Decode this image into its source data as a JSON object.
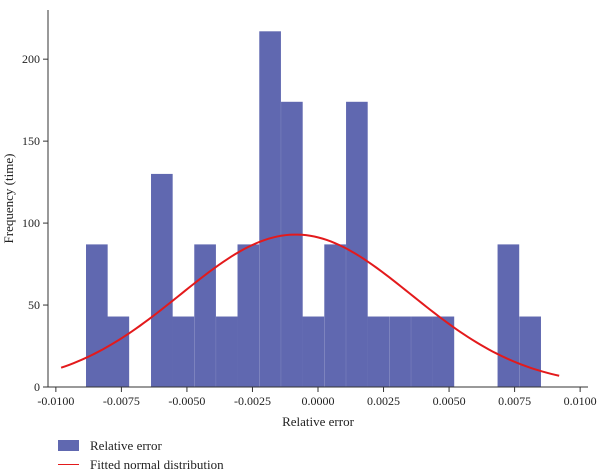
{
  "chart_data": {
    "type": "bar",
    "xlabel": "Relative error",
    "ylabel": "Frequency (time)",
    "xlim": [
      -0.0103,
      0.0103
    ],
    "ylim": [
      0,
      230
    ],
    "xticks": [
      -0.01,
      -0.0075,
      -0.005,
      -0.0025,
      0.0,
      0.0025,
      0.005,
      0.0075,
      0.01
    ],
    "xtick_labels": [
      "-0.0100",
      "-0.0075",
      "-0.0050",
      "-0.0025",
      "0.0000",
      "0.0025",
      "0.0050",
      "0.0075",
      "0.0100"
    ],
    "yticks": [
      0,
      50,
      100,
      150,
      200
    ],
    "ytick_labels": [
      "0",
      "50",
      "100",
      "150",
      "200"
    ],
    "bin_width": 0.000826,
    "bins": [
      {
        "x0": -0.00885,
        "height": 87
      },
      {
        "x0": -0.00803,
        "height": 43
      },
      {
        "x0": -0.00637,
        "height": 130
      },
      {
        "x0": -0.00555,
        "height": 43
      },
      {
        "x0": -0.00472,
        "height": 87
      },
      {
        "x0": -0.00389,
        "height": 43
      },
      {
        "x0": -0.00307,
        "height": 87
      },
      {
        "x0": -0.00224,
        "height": 217
      },
      {
        "x0": -0.00141,
        "height": 174
      },
      {
        "x0": -0.00059,
        "height": 43
      },
      {
        "x0": 0.00024,
        "height": 87
      },
      {
        "x0": 0.00107,
        "height": 174
      },
      {
        "x0": 0.00189,
        "height": 43
      },
      {
        "x0": 0.00272,
        "height": 43
      },
      {
        "x0": 0.00355,
        "height": 43
      },
      {
        "x0": 0.00437,
        "height": 43
      },
      {
        "x0": 0.00685,
        "height": 87
      },
      {
        "x0": 0.00768,
        "height": 43
      }
    ],
    "fit_curve": {
      "mean": -0.00085,
      "std": 0.0044,
      "peak": 93,
      "x_range": [
        -0.0098,
        0.0092
      ]
    },
    "legend": [
      {
        "label": "Relative error",
        "kind": "bar",
        "color": "#6068b0"
      },
      {
        "label": "Fitted normal distribution",
        "kind": "line",
        "color": "#e31a1c"
      }
    ],
    "legend_placement": "bottom-left",
    "grid": false
  },
  "colors": {
    "bar": "#6068b0",
    "curve": "#e31a1c",
    "axis": "#333333"
  }
}
